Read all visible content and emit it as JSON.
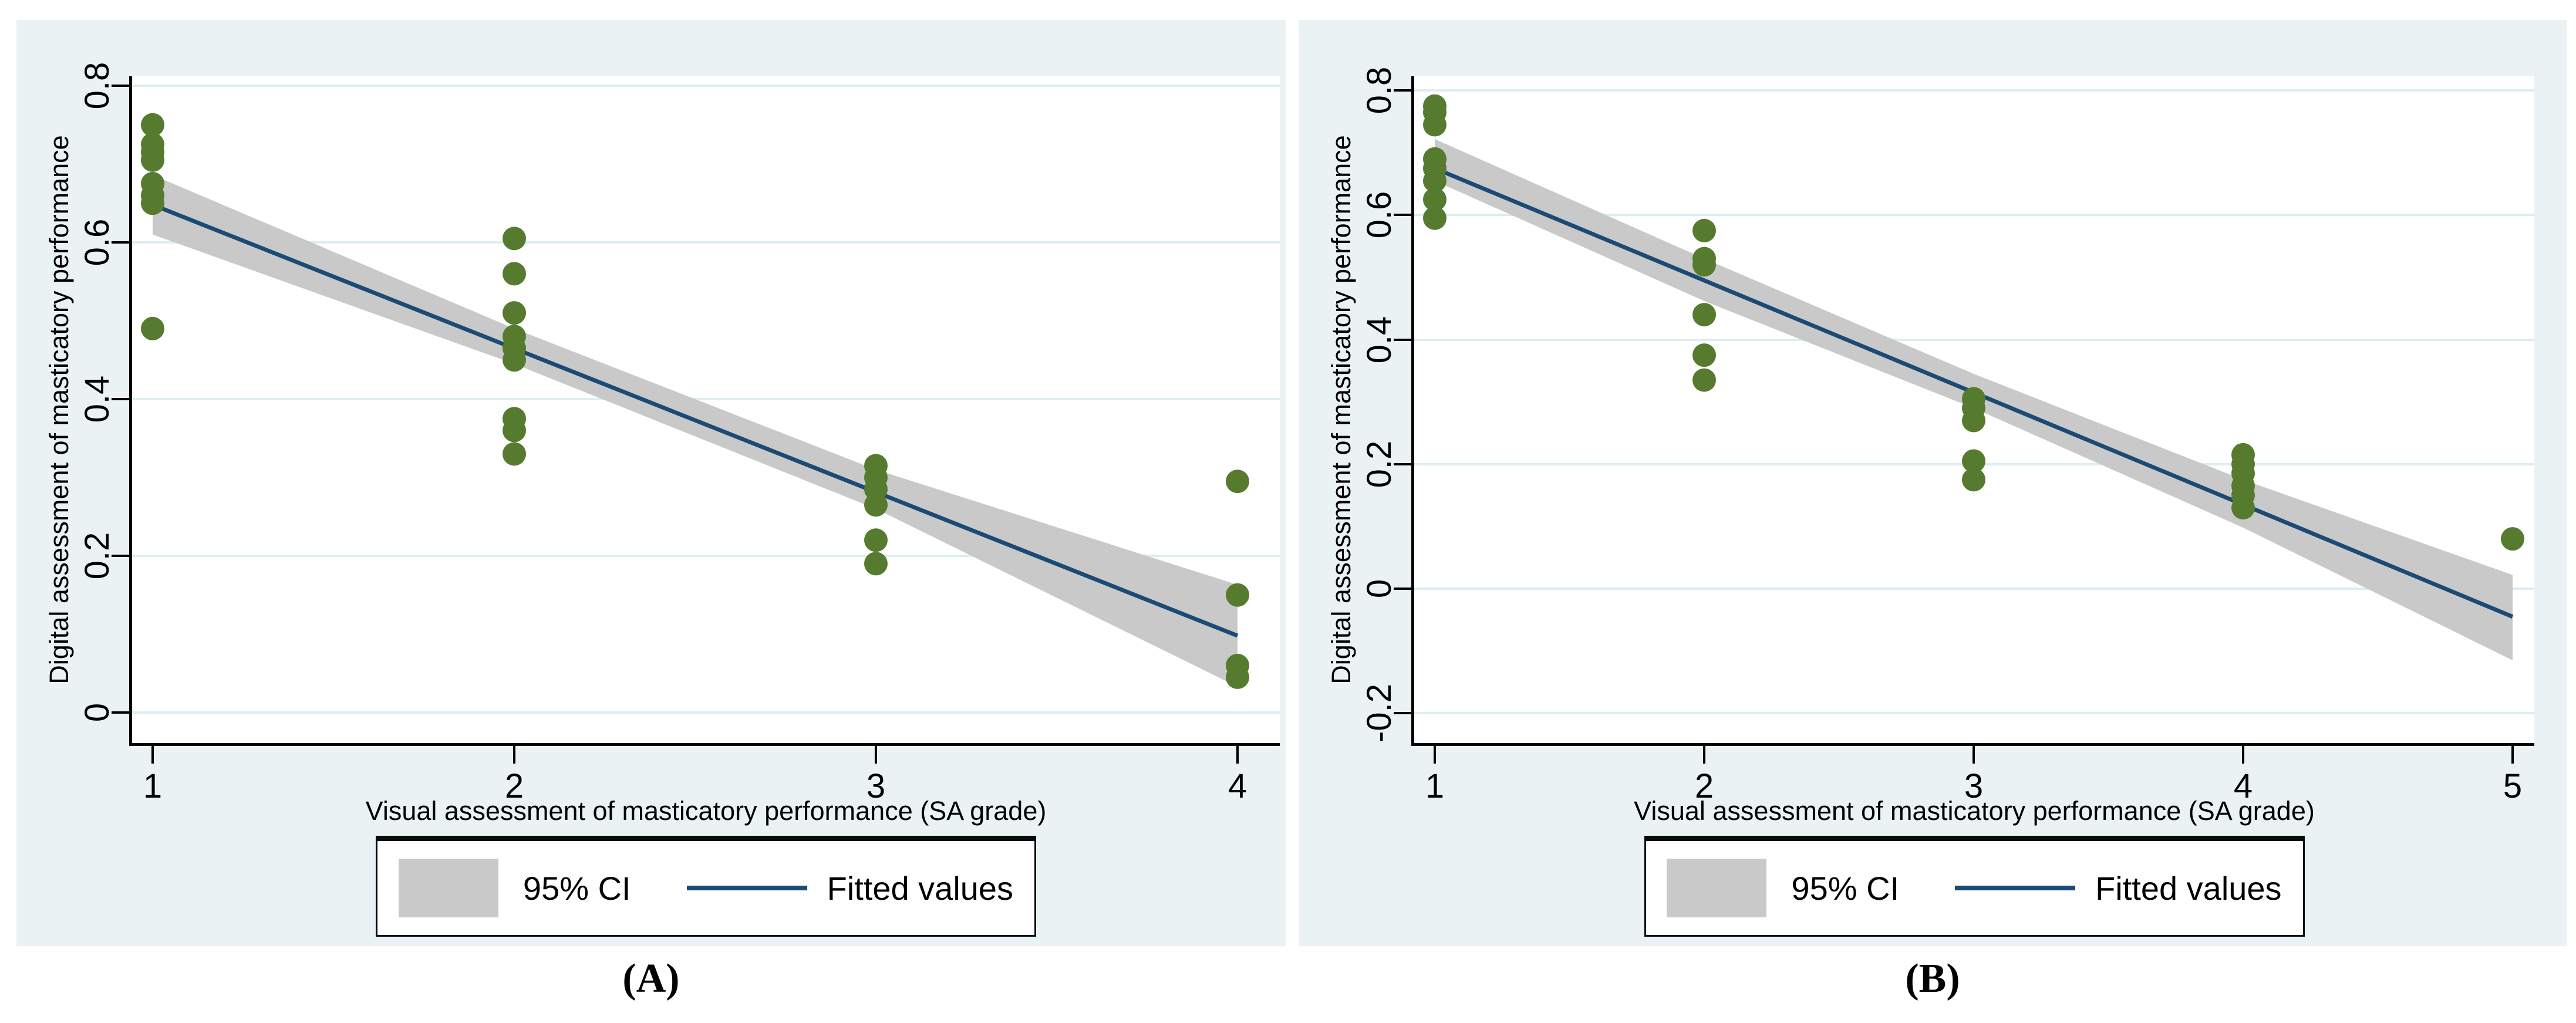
{
  "colors": {
    "panel_background": "#eaf2f3",
    "plot_background": "#ffffff",
    "gridline": "#dceef1",
    "axis": "#000000",
    "point": "#567b2f",
    "fitted_line": "#1b4a75",
    "ci_band": "#c9c9c9",
    "legend_border": "#0a0a0a",
    "legend_background": "#ffffff",
    "text": "#000000"
  },
  "legend": {
    "ci_label": "95% CI",
    "fit_label": "Fitted values"
  },
  "panels": [
    {
      "caption": "(A)",
      "x_label": "Visual assessment of masticatory performance (SA grade)",
      "y_label": "Digital assessment of masticatory performance",
      "chart_data": {
        "type": "scatter",
        "title": "",
        "xlabel": "Visual assessment of masticatory performance (SA grade)",
        "ylabel": "Digital assessment of masticatory performance",
        "x_ticks": [
          1,
          2,
          3,
          4
        ],
        "x_tick_labels": [
          "1",
          "2",
          "3",
          "4"
        ],
        "y_ticks": [
          0,
          0.2,
          0.4,
          0.6,
          0.8
        ],
        "y_tick_labels": [
          "0",
          "0.2",
          "0.4",
          "0.6",
          "0.8"
        ],
        "grid": true,
        "legend_position": "bottom",
        "legend_entries": [
          "95% CI",
          "Fitted values"
        ],
        "series": [
          {
            "name": "observations",
            "type": "scatter",
            "points": [
              [
                1,
                0.75
              ],
              [
                1,
                0.725
              ],
              [
                1,
                0.715
              ],
              [
                1,
                0.705
              ],
              [
                1,
                0.675
              ],
              [
                1,
                0.66
              ],
              [
                1,
                0.65
              ],
              [
                1,
                0.49
              ],
              [
                2,
                0.605
              ],
              [
                2,
                0.56
              ],
              [
                2,
                0.51
              ],
              [
                2,
                0.48
              ],
              [
                2,
                0.465
              ],
              [
                2,
                0.45
              ],
              [
                2,
                0.375
              ],
              [
                2,
                0.36
              ],
              [
                2,
                0.33
              ],
              [
                3,
                0.315
              ],
              [
                3,
                0.3
              ],
              [
                3,
                0.285
              ],
              [
                3,
                0.265
              ],
              [
                3,
                0.22
              ],
              [
                3,
                0.19
              ],
              [
                4,
                0.295
              ],
              [
                4,
                0.15
              ],
              [
                4,
                0.06
              ],
              [
                4,
                0.045
              ]
            ]
          },
          {
            "name": "Fitted values",
            "type": "line",
            "x": [
              1,
              4
            ],
            "y": [
              0.648,
              0.098
            ]
          },
          {
            "name": "95% CI",
            "type": "band",
            "x": [
              1,
              2,
              3,
              4
            ],
            "upper": [
              0.686,
              0.49,
              0.31,
              0.163
            ],
            "lower": [
              0.61,
              0.445,
              0.26,
              0.033
            ]
          }
        ]
      }
    },
    {
      "caption": "(B)",
      "x_label": "Visual assessment of masticatory performance (SA grade)",
      "y_label": "Digital assessment of masticatory performance",
      "chart_data": {
        "type": "scatter",
        "title": "",
        "xlabel": "Visual assessment of masticatory performance (SA grade)",
        "ylabel": "Digital assessment of masticatory performance",
        "x_ticks": [
          1,
          2,
          3,
          4,
          5
        ],
        "x_tick_labels": [
          "1",
          "2",
          "3",
          "4",
          "5"
        ],
        "y_ticks": [
          -0.2,
          0,
          0.2,
          0.4,
          0.6,
          0.8
        ],
        "y_tick_labels": [
          "-0.2",
          "0",
          "0.2",
          "0.4",
          "0.6",
          "0.8"
        ],
        "grid": true,
        "legend_position": "bottom",
        "legend_entries": [
          "95% CI",
          "Fitted values"
        ],
        "series": [
          {
            "name": "observations",
            "type": "scatter",
            "points": [
              [
                1,
                0.775
              ],
              [
                1,
                0.765
              ],
              [
                1,
                0.745
              ],
              [
                1,
                0.69
              ],
              [
                1,
                0.675
              ],
              [
                1,
                0.655
              ],
              [
                1,
                0.625
              ],
              [
                1,
                0.595
              ],
              [
                2,
                0.575
              ],
              [
                2,
                0.53
              ],
              [
                2,
                0.52
              ],
              [
                2,
                0.44
              ],
              [
                2,
                0.375
              ],
              [
                2,
                0.335
              ],
              [
                3,
                0.305
              ],
              [
                3,
                0.29
              ],
              [
                3,
                0.27
              ],
              [
                3,
                0.205
              ],
              [
                3,
                0.175
              ],
              [
                4,
                0.215
              ],
              [
                4,
                0.2
              ],
              [
                4,
                0.185
              ],
              [
                4,
                0.165
              ],
              [
                4,
                0.15
              ],
              [
                4,
                0.13
              ],
              [
                5,
                0.08
              ]
            ]
          },
          {
            "name": "Fitted values",
            "type": "line",
            "x": [
              1,
              5
            ],
            "y": [
              0.675,
              -0.045
            ]
          },
          {
            "name": "95% CI",
            "type": "band",
            "x": [
              1,
              2,
              3,
              4,
              5
            ],
            "upper": [
              0.722,
              0.53,
              0.345,
              0.175,
              0.022
            ],
            "lower": [
              0.655,
              0.462,
              0.29,
              0.098,
              -0.115
            ]
          }
        ]
      }
    }
  ]
}
